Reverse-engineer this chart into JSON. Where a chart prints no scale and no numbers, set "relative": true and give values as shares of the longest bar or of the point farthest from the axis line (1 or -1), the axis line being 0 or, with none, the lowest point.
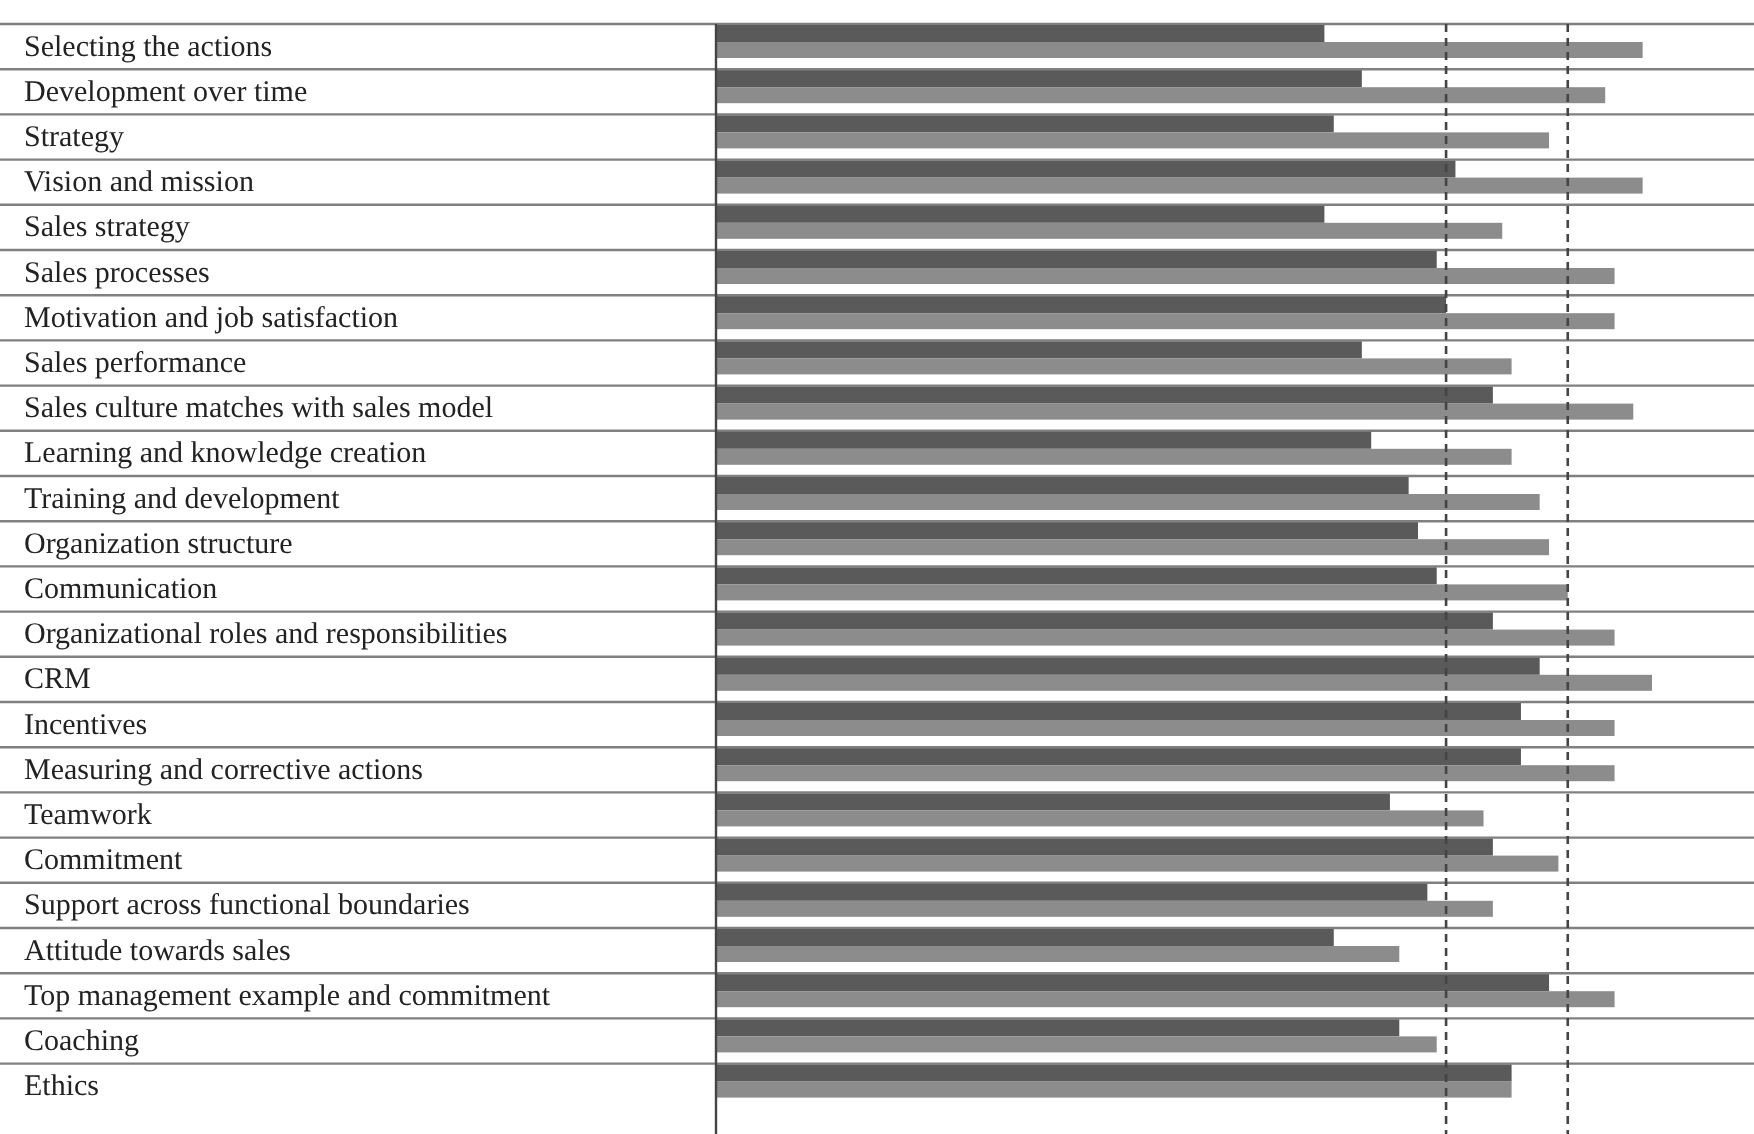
{
  "chart_data": {
    "type": "bar",
    "orientation": "horizontal",
    "relative": true,
    "categories": [
      "Selecting the actions",
      "Development over time",
      "Strategy",
      "Vision and mission",
      "Sales strategy",
      "Sales processes",
      "Motivation and job satisfaction",
      "Sales performance",
      "Sales culture matches with sales model",
      "Learning and knowledge creation",
      "Training and development",
      "Organization structure",
      "Communication",
      "Organizational roles and responsibilities",
      "CRM",
      "Incentives",
      "Measuring and corrective actions",
      "Teamwork",
      "Commitment",
      "Support across functional boundaries",
      "Attitude towards sales",
      "Top management example and commitment",
      "Coaching",
      "Ethics"
    ],
    "series": [
      {
        "color": "#5a5a5a",
        "values": [
          0.65,
          0.69,
          0.66,
          0.79,
          0.65,
          0.77,
          0.78,
          0.69,
          0.83,
          0.7,
          0.74,
          0.75,
          0.77,
          0.83,
          0.88,
          0.86,
          0.86,
          0.72,
          0.83,
          0.76,
          0.66,
          0.89,
          0.73,
          0.85
        ]
      },
      {
        "color": "#8c8c8c",
        "values": [
          0.99,
          0.95,
          0.89,
          0.99,
          0.84,
          0.96,
          0.96,
          0.85,
          0.98,
          0.85,
          0.88,
          0.89,
          0.91,
          0.96,
          1,
          0.96,
          0.96,
          0.82,
          0.9,
          0.83,
          0.73,
          0.96,
          0.77,
          0.85
        ]
      }
    ],
    "ref_lines": [
      {
        "axis": "x",
        "value": 0.78,
        "color": "#444444",
        "line_style": "dashed"
      },
      {
        "axis": "x",
        "value": 0.91,
        "color": "#444444",
        "line_style": "dashed"
      }
    ]
  }
}
